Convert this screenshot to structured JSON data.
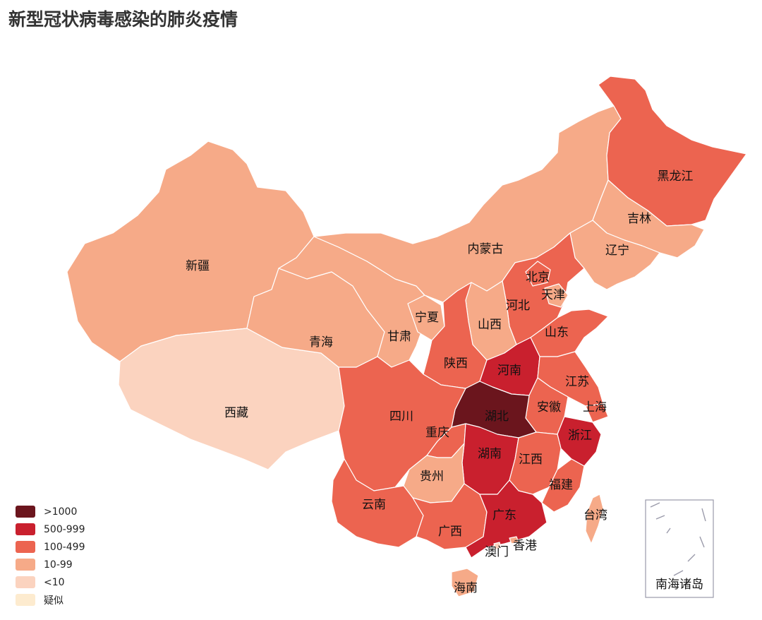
{
  "title": "新型冠状病毒感染的肺炎疫情",
  "colors": {
    "gt1000": "#6b151d",
    "500_999": "#c9202e",
    "100_499": "#ec6450",
    "10_99": "#f6aa88",
    "lt10": "#fbd3bf",
    "suspected": "#fdebcf",
    "border": "#ffffff",
    "inset_border": "#9a9aaa"
  },
  "legend": [
    {
      "label": ">1000",
      "color": "#6b151d"
    },
    {
      "label": "500-999",
      "color": "#c9202e"
    },
    {
      "label": "100-499",
      "color": "#ec6450"
    },
    {
      "label": "10-99",
      "color": "#f6aa88"
    },
    {
      "label": "<10",
      "color": "#fbd3bf"
    },
    {
      "label": "疑似",
      "color": "#fdebcf"
    }
  ],
  "provinces": [
    {
      "name": "新疆",
      "category": "10-99"
    },
    {
      "name": "西藏",
      "category": "<10"
    },
    {
      "name": "青海",
      "category": "10-99"
    },
    {
      "name": "甘肃",
      "category": "10-99"
    },
    {
      "name": "宁夏",
      "category": "10-99"
    },
    {
      "name": "内蒙古",
      "category": "10-99"
    },
    {
      "name": "黑龙江",
      "category": "100-499"
    },
    {
      "name": "吉林",
      "category": "10-99"
    },
    {
      "name": "辽宁",
      "category": "10-99"
    },
    {
      "name": "北京",
      "category": "100-499"
    },
    {
      "name": "天津",
      "category": "10-99"
    },
    {
      "name": "河北",
      "category": "100-499"
    },
    {
      "name": "山西",
      "category": "10-99"
    },
    {
      "name": "山东",
      "category": "100-499"
    },
    {
      "name": "陕西",
      "category": "100-499"
    },
    {
      "name": "河南",
      "category": "500-999"
    },
    {
      "name": "江苏",
      "category": "100-499"
    },
    {
      "name": "安徽",
      "category": "100-499"
    },
    {
      "name": "上海",
      "category": "100-499"
    },
    {
      "name": "湖北",
      "category": ">1000"
    },
    {
      "name": "四川",
      "category": "100-499"
    },
    {
      "name": "重庆",
      "category": "100-499"
    },
    {
      "name": "浙江",
      "category": "500-999"
    },
    {
      "name": "湖南",
      "category": "500-999"
    },
    {
      "name": "江西",
      "category": "100-499"
    },
    {
      "name": "贵州",
      "category": "10-99"
    },
    {
      "name": "福建",
      "category": "100-499"
    },
    {
      "name": "云南",
      "category": "100-499"
    },
    {
      "name": "广西",
      "category": "100-499"
    },
    {
      "name": "广东",
      "category": "500-999"
    },
    {
      "name": "台湾",
      "category": "10-99"
    },
    {
      "name": "澳门",
      "category": "<10"
    },
    {
      "name": "香港",
      "category": "10-99"
    },
    {
      "name": "海南",
      "category": "10-99"
    }
  ],
  "inset_label": "南海诸岛"
}
